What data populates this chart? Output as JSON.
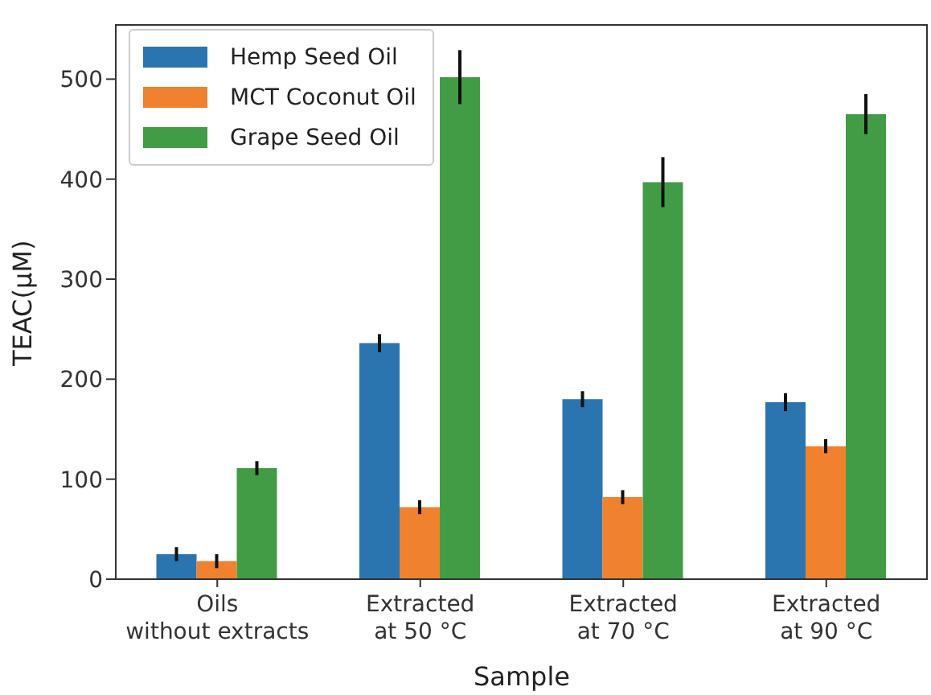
{
  "chart_data": {
    "type": "bar",
    "xlabel": "Sample",
    "ylabel": "TEAC(µM)",
    "categories": [
      "Oils\nwithout extracts",
      "Extracted\nat 50 °C",
      "Extracted\nat 70 °C",
      "Extracted\nat 90 °C"
    ],
    "series": [
      {
        "name": "Hemp Seed Oil",
        "color": "#2a75b0",
        "values": [
          25,
          236,
          180,
          177
        ],
        "errors": [
          7,
          9,
          8,
          9
        ]
      },
      {
        "name": "MCT Coconut Oil",
        "color": "#f0812e",
        "values": [
          18,
          72,
          82,
          133
        ],
        "errors": [
          7,
          7,
          7,
          7
        ]
      },
      {
        "name": "Grape Seed Oil",
        "color": "#429c45",
        "values": [
          111,
          502,
          397,
          465
        ],
        "errors": [
          7,
          27,
          25,
          20
        ]
      }
    ],
    "ylim": [
      0,
      555
    ],
    "yticks": [
      0,
      100,
      200,
      300,
      400,
      500
    ],
    "legend": "top left"
  }
}
